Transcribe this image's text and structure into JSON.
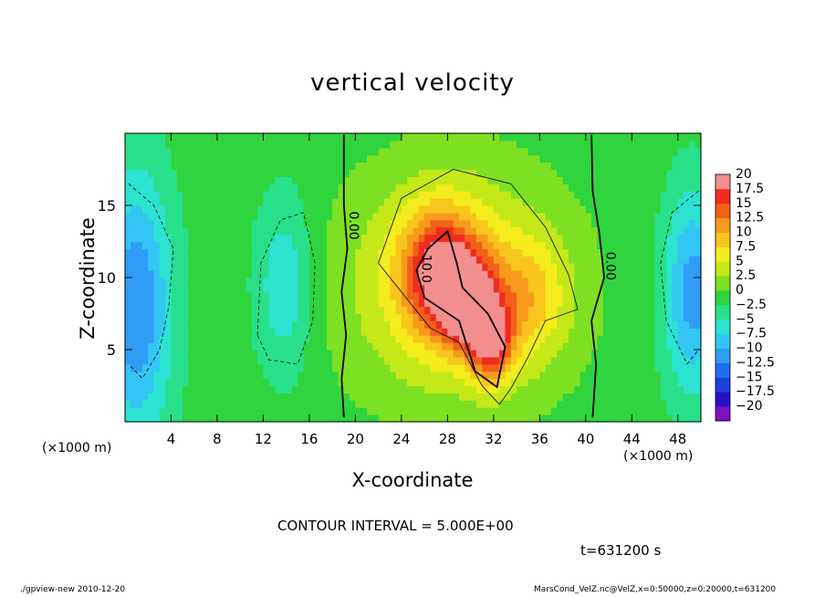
{
  "page": {
    "title": "vertical velocity",
    "contour_interval": "CONTOUR INTERVAL = 5.000E+00",
    "time": "t=631200 s",
    "footer_left": "./gpview-new  2010-12-20",
    "footer_right": "MarsCond_VelZ.nc@VelZ,x=0:50000,z=0:20000,t=631200",
    "x_unit": "(×1000 m)"
  },
  "chart_data": {
    "type": "heatmap",
    "title": "vertical velocity",
    "xlabel": "X-coordinate",
    "ylabel": "Z-coordinate",
    "x_unit": "(×1000 m)",
    "xlim": [
      0,
      50
    ],
    "ylim": [
      0,
      20
    ],
    "x_ticks": [
      4,
      8,
      12,
      16,
      20,
      24,
      28,
      32,
      36,
      40,
      44,
      48
    ],
    "y_ticks": [
      5,
      10,
      15
    ],
    "colorbar": {
      "levels": [
        -20,
        -17.5,
        -15,
        -12.5,
        -10,
        -7.5,
        -5,
        -2.5,
        0,
        2.5,
        5,
        7.5,
        10,
        12.5,
        15,
        17.5,
        20
      ],
      "labels": [
        "20",
        "17.5",
        "15",
        "12.5",
        "10",
        "7.5",
        "5",
        "2.5",
        "0",
        "−2.5",
        "−5",
        "−7.5",
        "−10",
        "−12.5",
        "−15",
        "−17.5",
        "−20"
      ],
      "colors": [
        "#7a12c4",
        "#2a10c8",
        "#1d3fe0",
        "#1f6ef2",
        "#2f9cf6",
        "#33c6f4",
        "#2ce3d2",
        "#29e08a",
        "#2fd43e",
        "#7ee022",
        "#c4e818",
        "#f4ec1c",
        "#f8c51c",
        "#f89a1c",
        "#f36018",
        "#ef2c1e",
        "#f28e8e"
      ]
    },
    "contour_interval": 5.0,
    "contour_labels": [
      {
        "text": "0.00",
        "x": 19.5,
        "y": 13.6
      },
      {
        "text": "10.0",
        "x": 25.8,
        "y": 10.6
      },
      {
        "text": "0.00",
        "x": 41.8,
        "y": 10.8
      }
    ],
    "features": [
      {
        "kind": "updraft",
        "peak": 14,
        "center": [
          27.5,
          10.5
        ],
        "sx": 2.4,
        "sy": 3.0
      },
      {
        "kind": "updraft",
        "peak": 14,
        "center": [
          29.6,
          8.2
        ],
        "sx": 1.6,
        "sy": 2.0
      },
      {
        "kind": "updraft",
        "peak": 14,
        "center": [
          31.8,
          5.6
        ],
        "sx": 1.3,
        "sy": 2.0
      },
      {
        "kind": "updraft",
        "peak": 9,
        "center": [
          28.5,
          9.5
        ],
        "sx": 6.5,
        "sy": 5.5
      },
      {
        "kind": "updraft",
        "peak": 6,
        "center": [
          35.0,
          8.5
        ],
        "sx": 2.5,
        "sy": 3.0
      },
      {
        "kind": "downdraft",
        "peak": -11,
        "center": [
          1.0,
          8.0
        ],
        "sx": 2.2,
        "sy": 6.5
      },
      {
        "kind": "downdraft",
        "peak": -6,
        "center": [
          13.8,
          9.5
        ],
        "sx": 1.8,
        "sy": 4.5
      },
      {
        "kind": "downdraft",
        "peak": -10,
        "center": [
          49.3,
          9.0
        ],
        "sx": 1.8,
        "sy": 5.0
      }
    ]
  }
}
